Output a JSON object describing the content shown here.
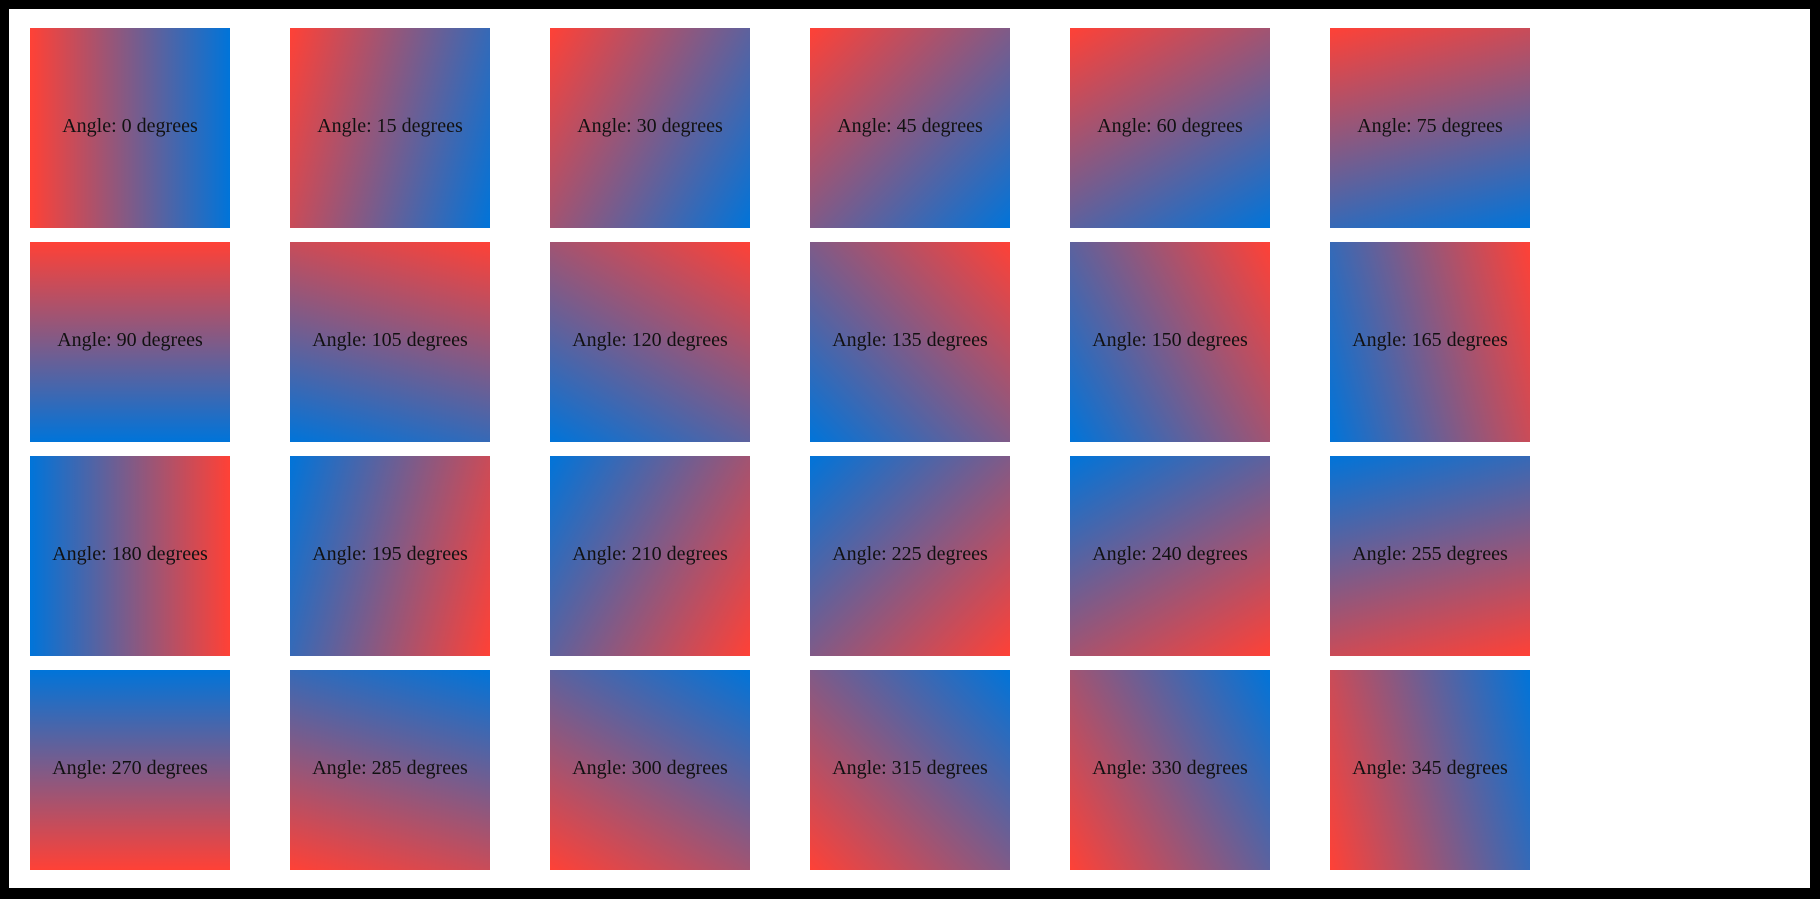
{
  "page": {
    "frame_color": "#000000",
    "background_color": "#ffffff"
  },
  "gradient": {
    "start_color": "#ff4136",
    "end_color": "#0074d9",
    "label_color": "#111111"
  },
  "tiles": [
    {
      "angle": 0,
      "label": "Angle: 0 degrees"
    },
    {
      "angle": 15,
      "label": "Angle: 15 degrees"
    },
    {
      "angle": 30,
      "label": "Angle: 30 degrees"
    },
    {
      "angle": 45,
      "label": "Angle: 45 degrees"
    },
    {
      "angle": 60,
      "label": "Angle: 60 degrees"
    },
    {
      "angle": 75,
      "label": "Angle: 75 degrees"
    },
    {
      "angle": 90,
      "label": "Angle: 90 degrees"
    },
    {
      "angle": 105,
      "label": "Angle: 105 degrees"
    },
    {
      "angle": 120,
      "label": "Angle: 120 degrees"
    },
    {
      "angle": 135,
      "label": "Angle: 135 degrees"
    },
    {
      "angle": 150,
      "label": "Angle: 150 degrees"
    },
    {
      "angle": 165,
      "label": "Angle: 165 degrees"
    },
    {
      "angle": 180,
      "label": "Angle: 180 degrees"
    },
    {
      "angle": 195,
      "label": "Angle: 195 degrees"
    },
    {
      "angle": 210,
      "label": "Angle: 210 degrees"
    },
    {
      "angle": 225,
      "label": "Angle: 225 degrees"
    },
    {
      "angle": 240,
      "label": "Angle: 240 degrees"
    },
    {
      "angle": 255,
      "label": "Angle: 255 degrees"
    },
    {
      "angle": 270,
      "label": "Angle: 270 degrees"
    },
    {
      "angle": 285,
      "label": "Angle: 285 degrees"
    },
    {
      "angle": 300,
      "label": "Angle: 300 degrees"
    },
    {
      "angle": 315,
      "label": "Angle: 315 degrees"
    },
    {
      "angle": 330,
      "label": "Angle: 330 degrees"
    },
    {
      "angle": 345,
      "label": "Angle: 345 degrees"
    }
  ]
}
